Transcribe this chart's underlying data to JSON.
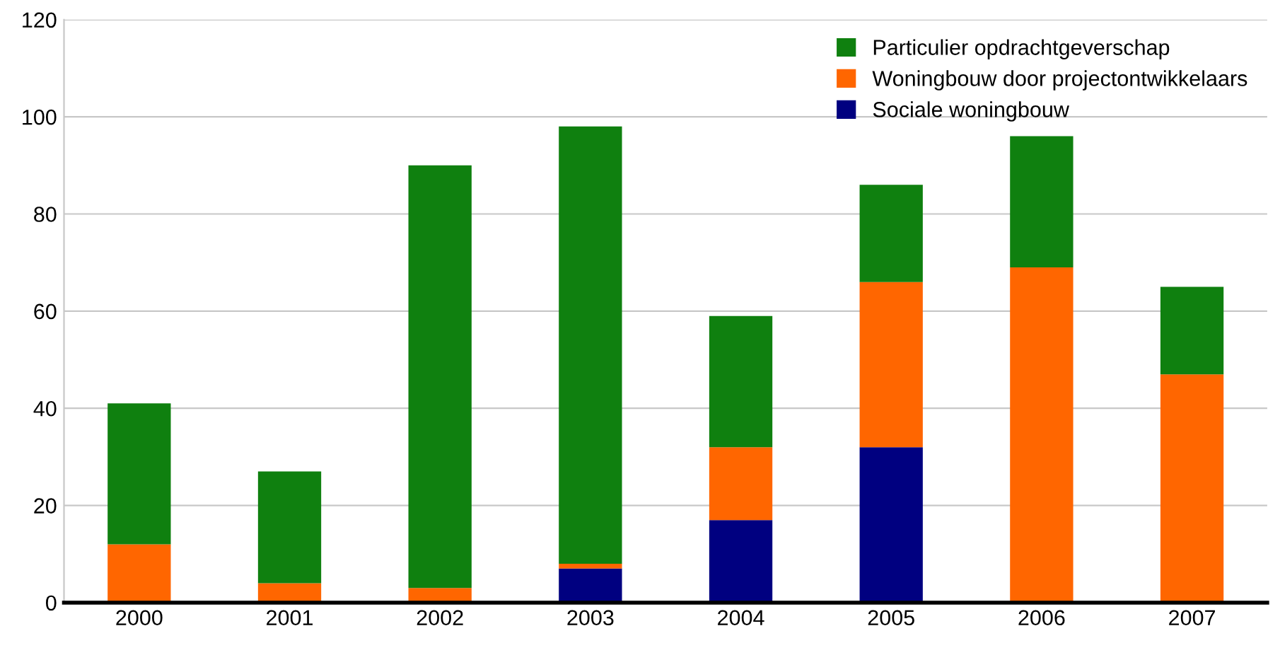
{
  "chart_data": {
    "type": "bar",
    "stacked": true,
    "categories": [
      "2000",
      "2001",
      "2002",
      "2003",
      "2004",
      "2005",
      "2006",
      "2007"
    ],
    "series": [
      {
        "name": "Sociale woningbouw",
        "color": "#000080",
        "values": [
          0,
          0,
          0,
          7,
          17,
          32,
          0,
          0
        ]
      },
      {
        "name": "Woningbouw door projectontwikkelaars",
        "color": "#ff6600",
        "values": [
          12,
          4,
          3,
          1,
          15,
          34,
          69,
          47
        ]
      },
      {
        "name": "Particulier opdrachtgeverschap",
        "color": "#0f800f",
        "values": [
          29,
          23,
          87,
          90,
          27,
          20,
          27,
          18
        ]
      }
    ],
    "ylim": [
      0,
      120
    ],
    "yticks": [
      0,
      20,
      40,
      60,
      80,
      100,
      120
    ],
    "grid": "y",
    "legend": "top right"
  }
}
